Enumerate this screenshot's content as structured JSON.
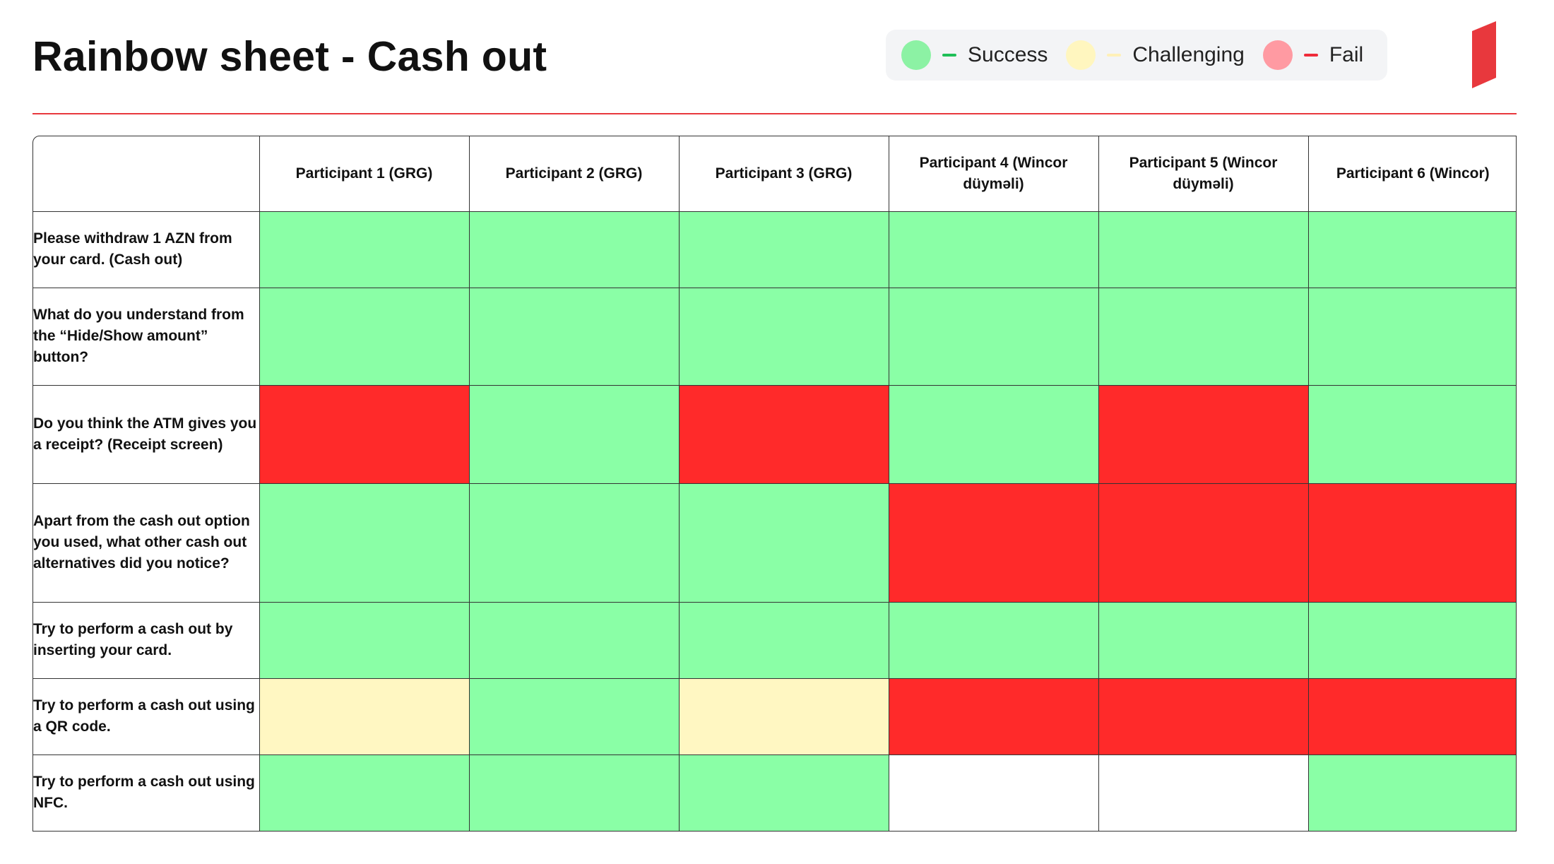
{
  "title": "Rainbow sheet - Cash out",
  "colors": {
    "success": "#8affa6",
    "challenging": "#fff7c2",
    "fail": "#ff2a2a",
    "empty": "#ffffff",
    "accent": "#e8383d"
  },
  "legend": [
    {
      "key": "success",
      "label": "Success",
      "dot_color": "#8cf2a4",
      "dash_color": "#1fbf57"
    },
    {
      "key": "challenging",
      "label": "Challenging",
      "dot_color": "#fff6bf",
      "dash_color": "#fff0b8"
    },
    {
      "key": "fail",
      "label": "Fail",
      "dot_color": "#ff9aa2",
      "dash_color": "#ef2b3a"
    }
  ],
  "logo": {
    "icon": "brand-logo-icon",
    "color": "#e8383d"
  },
  "table": {
    "columns": [
      "Participant 1 (GRG)",
      "Participant 2 (GRG)",
      "Participant 3 (GRG)",
      "Participant 4 (Wincor düyməli)",
      "Participant 5 (Wincor düyməli)",
      "Participant 6 (Wincor)"
    ],
    "rows": [
      {
        "task": "Please withdraw 1 AZN from your card. (Cash out)",
        "results": [
          "success",
          "success",
          "success",
          "success",
          "success",
          "success"
        ]
      },
      {
        "task": "What do you understand from the “Hide/Show amount” button?",
        "results": [
          "success",
          "success",
          "success",
          "success",
          "success",
          "success"
        ]
      },
      {
        "task": "Do you think the ATM gives you a receipt? (Receipt screen)",
        "results": [
          "fail",
          "success",
          "fail",
          "success",
          "fail",
          "success"
        ]
      },
      {
        "task": "Apart from the cash out option you used, what other cash out alternatives did you notice?",
        "results": [
          "success",
          "success",
          "success",
          "fail",
          "fail",
          "fail"
        ]
      },
      {
        "task": "Try to perform a cash out by inserting your card.",
        "results": [
          "success",
          "success",
          "success",
          "success",
          "success",
          "success"
        ]
      },
      {
        "task": "Try to perform a cash out using a QR code.",
        "results": [
          "challenging",
          "success",
          "challenging",
          "fail",
          "fail",
          "fail"
        ]
      },
      {
        "task": "Try to perform a cash out using NFC.",
        "results": [
          "success",
          "success",
          "success",
          "empty",
          "empty",
          "success"
        ]
      }
    ]
  }
}
